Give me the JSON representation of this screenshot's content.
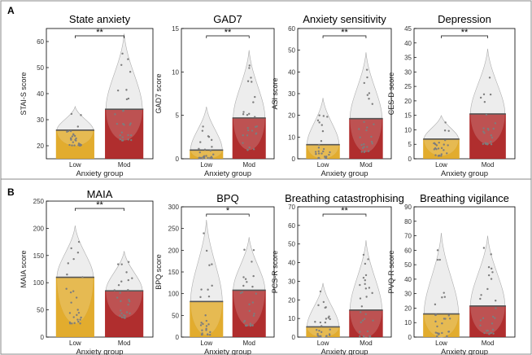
{
  "panels": [
    {
      "letter": "A"
    },
    {
      "letter": "B"
    }
  ],
  "colors": {
    "low": "#e0a51c",
    "mod": "#a91c1c",
    "violin": "#e8e8e8",
    "dots": "#7d7d7d"
  },
  "chart_data": [
    {
      "type": "bar",
      "panel": "A",
      "title": "State anxiety",
      "ylabel": "STAI-S score",
      "xlabel": "Anxiety group",
      "categories": [
        "Low",
        "Mod"
      ],
      "values": [
        26,
        34
      ],
      "ylim": [
        15,
        65
      ],
      "yticks": [
        20,
        30,
        40,
        50,
        60
      ],
      "violin_top": [
        35,
        63
      ],
      "violin_bottom": [
        20,
        22
      ],
      "significance": "**"
    },
    {
      "type": "bar",
      "panel": "A",
      "title": "GAD7",
      "ylabel": "GAD7 score",
      "xlabel": "Anxiety group",
      "categories": [
        "Low",
        "Mod"
      ],
      "values": [
        1,
        4.7
      ],
      "ylim": [
        0,
        15
      ],
      "yticks": [
        0,
        5,
        10,
        15
      ],
      "violin_top": [
        6,
        12.5
      ],
      "violin_bottom": [
        0,
        1
      ],
      "significance": "**"
    },
    {
      "type": "bar",
      "panel": "A",
      "title": "Anxiety sensitivity",
      "ylabel": "ASI score",
      "xlabel": "Anxiety group",
      "categories": [
        "Low",
        "Mod"
      ],
      "values": [
        6.5,
        18.5
      ],
      "ylim": [
        0,
        60
      ],
      "yticks": [
        0,
        10,
        20,
        30,
        40,
        50,
        60
      ],
      "violin_top": [
        28,
        49
      ],
      "violin_bottom": [
        0,
        3
      ],
      "significance": "**"
    },
    {
      "type": "bar",
      "panel": "A",
      "title": "Depression",
      "ylabel": "CES-D score",
      "xlabel": "Anxiety group",
      "categories": [
        "Low",
        "Mod"
      ],
      "values": [
        6.8,
        15.5
      ],
      "ylim": [
        0,
        45
      ],
      "yticks": [
        0,
        5,
        10,
        15,
        20,
        25,
        30,
        35,
        40,
        45
      ],
      "violin_top": [
        15,
        38
      ],
      "violin_bottom": [
        1,
        5
      ],
      "significance": "**"
    },
    {
      "type": "bar",
      "panel": "B",
      "title": "MAIA",
      "ylabel": "MAIA score",
      "xlabel": "Anxiety group",
      "categories": [
        "Low",
        "Mod"
      ],
      "values": [
        110,
        85
      ],
      "ylim": [
        0,
        250
      ],
      "yticks": [
        0,
        50,
        100,
        150,
        200,
        250
      ],
      "violin_top": [
        205,
        158
      ],
      "violin_bottom": [
        25,
        35
      ],
      "significance": "**"
    },
    {
      "type": "bar",
      "panel": "B",
      "title": "BPQ",
      "ylabel": "BPQ score",
      "xlabel": "Anxiety group",
      "categories": [
        "Low",
        "Mod"
      ],
      "values": [
        82,
        108
      ],
      "ylim": [
        0,
        300
      ],
      "yticks": [
        0,
        50,
        100,
        150,
        200,
        250,
        300
      ],
      "violin_top": [
        270,
        230
      ],
      "violin_bottom": [
        5,
        25
      ],
      "significance": "*"
    },
    {
      "type": "bar",
      "panel": "B",
      "title": "Breathing catastrophising",
      "ylabel": "PCS-R score",
      "xlabel": "Anxiety group",
      "categories": [
        "Low",
        "Mod"
      ],
      "values": [
        5.5,
        14.5
      ],
      "ylim": [
        0,
        70
      ],
      "yticks": [
        0,
        10,
        20,
        30,
        40,
        50,
        60,
        70
      ],
      "violin_top": [
        29,
        52
      ],
      "violin_bottom": [
        0,
        0
      ],
      "significance": "**"
    },
    {
      "type": "bar",
      "panel": "B",
      "title": "Breathing vigilance",
      "ylabel": "PVQ-R score",
      "xlabel": "Anxiety group",
      "categories": [
        "Low",
        "Mod"
      ],
      "values": [
        16,
        21.5
      ],
      "ylim": [
        0,
        90
      ],
      "yticks": [
        0,
        10,
        20,
        30,
        40,
        50,
        60,
        70,
        80,
        90
      ],
      "violin_top": [
        72,
        70
      ],
      "violin_bottom": [
        0,
        2
      ],
      "significance": ""
    }
  ]
}
